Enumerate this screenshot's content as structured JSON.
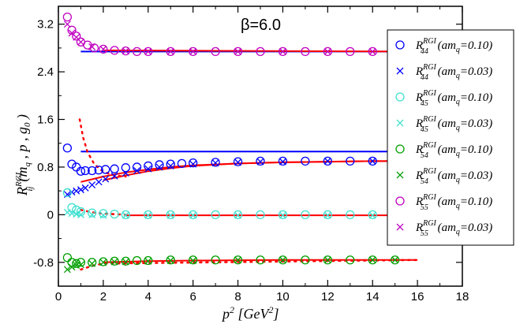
{
  "chart_data": {
    "type": "scatter",
    "annotation": "β=6.0",
    "xlabel": {
      "main": "p",
      "sup": "2",
      "unit_open": " [GeV",
      "unit_sup": "2",
      "unit_close": "]"
    },
    "ylabel": {
      "main": "R",
      "sup": "RGI",
      "sub": "ij",
      "args": "(m",
      "args_sub": "q",
      "args_rest": " , p , g",
      "args_sub2": "0",
      "args_close": " )"
    },
    "xlim": [
      0,
      18
    ],
    "ylim": [
      -1.2,
      3.5
    ],
    "x_ticks": [
      0,
      2,
      4,
      6,
      8,
      10,
      12,
      14,
      16,
      18
    ],
    "x_tick_labels": [
      "0",
      "2",
      "4",
      "6",
      "8",
      "10",
      "12",
      "14",
      "16",
      "18"
    ],
    "y_ticks": [
      -0.8,
      0,
      0.8,
      1.6,
      2.4,
      3.2
    ],
    "y_tick_labels": [
      "-0.8",
      "0",
      "0.8",
      "1.6",
      "2.4",
      "3.2"
    ],
    "grid": false,
    "legend_position": "right",
    "legend": [
      {
        "sub": "44",
        "mass": "0.10",
        "marker": "circle",
        "color": "#0000ff"
      },
      {
        "sub": "44",
        "mass": "0.03",
        "marker": "x",
        "color": "#0000ff"
      },
      {
        "sub": "45",
        "mass": "0.10",
        "marker": "circle",
        "color": "#40e0d0"
      },
      {
        "sub": "45",
        "mass": "0.03",
        "marker": "x",
        "color": "#40e0d0"
      },
      {
        "sub": "54",
        "mass": "0.10",
        "marker": "circle",
        "color": "#00a000"
      },
      {
        "sub": "54",
        "mass": "0.03",
        "marker": "x",
        "color": "#00a000"
      },
      {
        "sub": "55",
        "mass": "0.10",
        "marker": "circle",
        "color": "#c000c0"
      },
      {
        "sub": "55",
        "mass": "0.03",
        "marker": "x",
        "color": "#c000c0"
      }
    ],
    "legend_text": {
      "prefix": "R",
      "sup": "RGI",
      "open": " (am",
      "q": "q",
      "eq": "=",
      "close": ")"
    },
    "series": [
      {
        "id": "R44_010",
        "marker": "circle",
        "color": "#0000ff",
        "points": [
          [
            0.4,
            1.12
          ],
          [
            0.6,
            0.85
          ],
          [
            0.8,
            0.8
          ],
          [
            1.0,
            0.73
          ],
          [
            1.2,
            0.74
          ],
          [
            1.5,
            0.74
          ],
          [
            1.8,
            0.75
          ],
          [
            2.1,
            0.76
          ],
          [
            2.5,
            0.77
          ],
          [
            3.0,
            0.79
          ],
          [
            3.5,
            0.8
          ],
          [
            4.0,
            0.82
          ],
          [
            4.5,
            0.84
          ],
          [
            5.0,
            0.85
          ],
          [
            5.5,
            0.86
          ],
          [
            6.0,
            0.87
          ],
          [
            7.0,
            0.88
          ],
          [
            8.0,
            0.89
          ],
          [
            9.0,
            0.9
          ],
          [
            10.0,
            0.9
          ],
          [
            11.0,
            0.9
          ],
          [
            12.0,
            0.9
          ],
          [
            13.0,
            0.9
          ],
          [
            14.0,
            0.9
          ],
          [
            15.0,
            0.9
          ]
        ]
      },
      {
        "id": "R44_003",
        "marker": "x",
        "color": "#0000ff",
        "points": [
          [
            0.4,
            0.34
          ],
          [
            0.6,
            0.38
          ],
          [
            0.8,
            0.4
          ],
          [
            1.0,
            0.42
          ],
          [
            1.2,
            0.45
          ],
          [
            1.5,
            0.5
          ],
          [
            1.8,
            0.55
          ],
          [
            2.1,
            0.6
          ],
          [
            2.5,
            0.65
          ],
          [
            3.0,
            0.7
          ],
          [
            3.5,
            0.74
          ],
          [
            4.0,
            0.77
          ],
          [
            4.5,
            0.8
          ],
          [
            5.0,
            0.82
          ],
          [
            6.0,
            0.85
          ],
          [
            7.0,
            0.87
          ],
          [
            8.0,
            0.88
          ],
          [
            9.0,
            0.89
          ],
          [
            10.0,
            0.89
          ],
          [
            12.0,
            0.9
          ],
          [
            14.0,
            0.9
          ],
          [
            15.0,
            0.9
          ]
        ]
      },
      {
        "id": "R45_010",
        "marker": "circle",
        "color": "#40e0d0",
        "points": [
          [
            0.4,
            0.37
          ],
          [
            0.6,
            0.12
          ],
          [
            0.8,
            0.08
          ],
          [
            1.0,
            0.05
          ],
          [
            1.5,
            0.03
          ],
          [
            2.0,
            0.02
          ],
          [
            2.5,
            0.01
          ],
          [
            3.0,
            0.0
          ],
          [
            4.0,
            0.0
          ],
          [
            5.0,
            0.0
          ],
          [
            6.0,
            0.0
          ],
          [
            7.0,
            0.0
          ],
          [
            8.0,
            0.0
          ],
          [
            9.0,
            0.0
          ],
          [
            10.0,
            0.0
          ],
          [
            11.0,
            0.0
          ],
          [
            12.0,
            0.0
          ],
          [
            13.0,
            0.0
          ],
          [
            14.0,
            0.0
          ],
          [
            15.0,
            0.0
          ]
        ]
      },
      {
        "id": "R45_003",
        "marker": "x",
        "color": "#40e0d0",
        "points": [
          [
            0.4,
            0.04
          ],
          [
            0.6,
            0.02
          ],
          [
            0.8,
            0.01
          ],
          [
            1.0,
            0.0
          ],
          [
            1.5,
            0.0
          ],
          [
            2.0,
            -0.01
          ],
          [
            3.0,
            -0.01
          ],
          [
            4.0,
            -0.01
          ],
          [
            5.0,
            -0.01
          ],
          [
            6.0,
            -0.01
          ],
          [
            8.0,
            -0.01
          ],
          [
            10.0,
            -0.01
          ],
          [
            12.0,
            -0.01
          ],
          [
            14.0,
            -0.01
          ],
          [
            15.0,
            -0.01
          ]
        ]
      },
      {
        "id": "R54_010",
        "marker": "circle",
        "color": "#00a000",
        "points": [
          [
            0.4,
            -0.72
          ],
          [
            0.6,
            -0.8
          ],
          [
            0.8,
            -0.82
          ],
          [
            1.0,
            -0.8
          ],
          [
            1.5,
            -0.8
          ],
          [
            2.0,
            -0.79
          ],
          [
            2.5,
            -0.78
          ],
          [
            3.0,
            -0.78
          ],
          [
            3.5,
            -0.77
          ],
          [
            4.0,
            -0.77
          ],
          [
            5.0,
            -0.76
          ],
          [
            6.0,
            -0.76
          ],
          [
            7.0,
            -0.76
          ],
          [
            8.0,
            -0.76
          ],
          [
            9.0,
            -0.76
          ],
          [
            10.0,
            -0.76
          ],
          [
            11.0,
            -0.76
          ],
          [
            12.0,
            -0.76
          ],
          [
            13.0,
            -0.76
          ],
          [
            14.0,
            -0.76
          ],
          [
            15.0,
            -0.76
          ]
        ]
      },
      {
        "id": "R54_003",
        "marker": "x",
        "color": "#00a000",
        "points": [
          [
            0.4,
            -0.92
          ],
          [
            0.6,
            -0.88
          ],
          [
            0.8,
            -0.85
          ],
          [
            1.0,
            -0.84
          ],
          [
            1.5,
            -0.82
          ],
          [
            2.0,
            -0.8
          ],
          [
            2.5,
            -0.79
          ],
          [
            3.0,
            -0.79
          ],
          [
            4.0,
            -0.78
          ],
          [
            5.0,
            -0.77
          ],
          [
            6.0,
            -0.77
          ],
          [
            8.0,
            -0.76
          ],
          [
            10.0,
            -0.76
          ],
          [
            12.0,
            -0.76
          ],
          [
            14.0,
            -0.76
          ],
          [
            15.0,
            -0.76
          ]
        ]
      },
      {
        "id": "R55_010",
        "marker": "circle",
        "color": "#c000c0",
        "points": [
          [
            0.4,
            3.32
          ],
          [
            0.6,
            3.1
          ],
          [
            0.8,
            3.0
          ],
          [
            1.0,
            2.9
          ],
          [
            1.3,
            2.85
          ],
          [
            1.6,
            2.8
          ],
          [
            2.0,
            2.78
          ],
          [
            2.5,
            2.76
          ],
          [
            3.0,
            2.75
          ],
          [
            3.5,
            2.74
          ],
          [
            4.0,
            2.74
          ],
          [
            5.0,
            2.74
          ],
          [
            6.0,
            2.74
          ],
          [
            7.0,
            2.74
          ],
          [
            8.0,
            2.74
          ],
          [
            9.0,
            2.74
          ],
          [
            10.0,
            2.74
          ],
          [
            11.0,
            2.74
          ],
          [
            12.0,
            2.74
          ],
          [
            13.0,
            2.74
          ],
          [
            14.0,
            2.74
          ],
          [
            15.0,
            2.74
          ]
        ]
      },
      {
        "id": "R55_003",
        "marker": "x",
        "color": "#c000c0",
        "points": [
          [
            0.4,
            3.2
          ],
          [
            0.6,
            3.05
          ],
          [
            0.8,
            2.98
          ],
          [
            1.0,
            2.9
          ],
          [
            1.5,
            2.82
          ],
          [
            2.0,
            2.78
          ],
          [
            3.0,
            2.75
          ],
          [
            4.0,
            2.74
          ],
          [
            5.0,
            2.74
          ],
          [
            6.0,
            2.74
          ],
          [
            8.0,
            2.74
          ],
          [
            10.0,
            2.74
          ],
          [
            12.0,
            2.74
          ],
          [
            14.0,
            2.74
          ],
          [
            15.0,
            2.74
          ]
        ]
      }
    ],
    "lines": [
      {
        "id": "R44_limit_line",
        "color": "#0000ff",
        "style": "solid",
        "points": [
          [
            1.0,
            1.06
          ],
          [
            16.0,
            1.06
          ]
        ]
      },
      {
        "id": "R55_fit_line",
        "color": "#0000ff",
        "style": "solid",
        "points": [
          [
            1.0,
            2.74
          ],
          [
            16.0,
            2.74
          ]
        ]
      },
      {
        "id": "R55_fit_red",
        "color": "#ff0000",
        "style": "solid",
        "points": [
          [
            2.0,
            2.76
          ],
          [
            16.0,
            2.74
          ]
        ]
      },
      {
        "id": "R44_fit_010",
        "color": "#ff0000",
        "style": "solid",
        "points": [
          [
            1.0,
            0.55
          ],
          [
            2.0,
            0.64
          ],
          [
            3.0,
            0.71
          ],
          [
            4.0,
            0.76
          ],
          [
            5.0,
            0.8
          ],
          [
            6.0,
            0.83
          ],
          [
            8.0,
            0.86
          ],
          [
            10.0,
            0.88
          ],
          [
            12.0,
            0.89
          ],
          [
            14.0,
            0.9
          ],
          [
            16.0,
            0.9
          ]
        ]
      },
      {
        "id": "R44_fit_003",
        "color": "#ff0000",
        "style": "solid",
        "points": [
          [
            2.0,
            0.58
          ],
          [
            3.0,
            0.66
          ],
          [
            4.0,
            0.73
          ],
          [
            5.0,
            0.78
          ],
          [
            6.0,
            0.82
          ],
          [
            8.0,
            0.86
          ],
          [
            10.0,
            0.88
          ],
          [
            12.0,
            0.89
          ],
          [
            14.0,
            0.9
          ],
          [
            16.0,
            0.9
          ]
        ]
      },
      {
        "id": "R45_fit",
        "color": "#ff0000",
        "style": "solid",
        "points": [
          [
            3.0,
            -0.01
          ],
          [
            16.0,
            -0.01
          ]
        ]
      },
      {
        "id": "R54_fit",
        "color": "#ff0000",
        "style": "solid",
        "points": [
          [
            2.0,
            -0.8
          ],
          [
            4.0,
            -0.78
          ],
          [
            6.0,
            -0.77
          ],
          [
            10.0,
            -0.76
          ],
          [
            16.0,
            -0.76
          ]
        ]
      },
      {
        "id": "R44_dotted",
        "color": "#ff0000",
        "style": "dotted",
        "points": [
          [
            0.95,
            1.6
          ],
          [
            1.1,
            1.3
          ],
          [
            1.3,
            1.05
          ],
          [
            1.6,
            0.85
          ],
          [
            2.0,
            0.72
          ],
          [
            2.5,
            0.66
          ],
          [
            3.0,
            0.64
          ]
        ]
      },
      {
        "id": "R45_dotted",
        "color": "#ff0000",
        "style": "dotted",
        "points": [
          [
            1.0,
            0.08
          ],
          [
            1.5,
            0.04
          ],
          [
            2.0,
            0.02
          ],
          [
            3.0,
            0.0
          ]
        ]
      },
      {
        "id": "R54_dotted",
        "color": "#ff0000",
        "style": "dotted",
        "points": [
          [
            1.0,
            -0.92
          ],
          [
            1.5,
            -0.86
          ],
          [
            2.0,
            -0.82
          ],
          [
            16.0,
            -0.76
          ]
        ]
      }
    ]
  }
}
